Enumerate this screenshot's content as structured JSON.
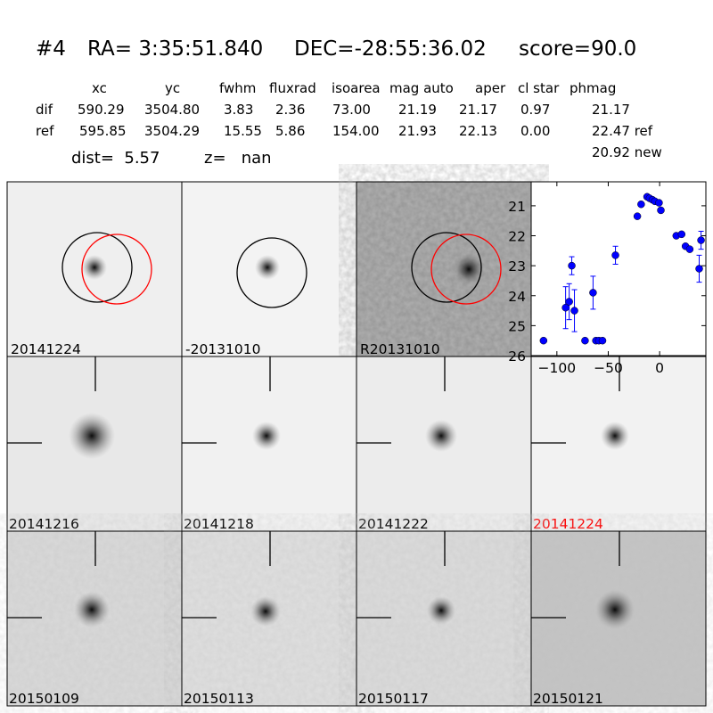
{
  "title": {
    "id": "#4",
    "ra": "RA= 3:35:51.840",
    "dec": "DEC=-28:55:36.02",
    "score": "score=90.0"
  },
  "table": {
    "headers": [
      "xc",
      "yc",
      "fwhm",
      "fluxrad",
      "isoarea",
      "mag auto",
      "aper",
      "cl star",
      "phmag"
    ],
    "rows": [
      {
        "label": "dif",
        "values": [
          "590.29",
          "3504.80",
          "3.83",
          "2.36",
          "73.00",
          "21.19",
          "21.17",
          "0.97",
          "21.17"
        ]
      },
      {
        "label": "ref",
        "values": [
          "595.85",
          "3504.29",
          "15.55",
          "5.86",
          "154.00",
          "21.93",
          "22.13",
          "0.00",
          "22.47 ref"
        ]
      }
    ],
    "extra": "20.92 new",
    "dist": "dist=  5.57",
    "z": "z=   nan"
  },
  "stamps": [
    {
      "label": "20141224",
      "color": "#000000"
    },
    {
      "label": "-20131010",
      "color": "#000000"
    },
    {
      "label": "R20131010",
      "color": "#000000"
    },
    {
      "label": "20141216",
      "color": "#000000"
    },
    {
      "label": "20141218",
      "color": "#000000"
    },
    {
      "label": "20141222",
      "color": "#000000"
    },
    {
      "label": "20141224",
      "color": "#ff0000"
    },
    {
      "label": "20150109",
      "color": "#000000"
    },
    {
      "label": "20150113",
      "color": "#000000"
    },
    {
      "label": "20150117",
      "color": "#000000"
    },
    {
      "label": "20150121",
      "color": "#000000"
    }
  ],
  "chart_data": {
    "type": "scatter",
    "xlim": [
      -125,
      45
    ],
    "ylim": [
      26,
      20.2
    ],
    "y_inverted": true,
    "xticks": [
      -100,
      -50,
      0
    ],
    "yticks": [
      21,
      22,
      23,
      24,
      25,
      26
    ],
    "marker_color": "#0000ff",
    "points": [
      {
        "x": -113,
        "y": 25.5,
        "err": 0
      },
      {
        "x": -91.5,
        "y": 24.4,
        "err": 0.7
      },
      {
        "x": -88,
        "y": 24.2,
        "err": 0.6
      },
      {
        "x": -85.5,
        "y": 23.0,
        "err": 0.3
      },
      {
        "x": -82.9,
        "y": 24.5,
        "err": 0.7
      },
      {
        "x": -72.6,
        "y": 25.5,
        "err": 0
      },
      {
        "x": -64.8,
        "y": 23.9,
        "err": 0.55
      },
      {
        "x": -62,
        "y": 25.5,
        "err": 0
      },
      {
        "x": -59.1,
        "y": 25.5,
        "err": 0
      },
      {
        "x": -55.6,
        "y": 25.5,
        "err": 0
      },
      {
        "x": -43,
        "y": 22.65,
        "err": 0.3
      },
      {
        "x": -21.7,
        "y": 21.35,
        "err": 0
      },
      {
        "x": -18,
        "y": 20.95,
        "err": 0
      },
      {
        "x": -12.2,
        "y": 20.7,
        "err": 0
      },
      {
        "x": -9.8,
        "y": 20.75,
        "err": 0
      },
      {
        "x": -7,
        "y": 20.8,
        "err": 0
      },
      {
        "x": -4.6,
        "y": 20.85,
        "err": 0
      },
      {
        "x": -0.6,
        "y": 20.9,
        "err": 0
      },
      {
        "x": 1.2,
        "y": 21.15,
        "err": 0
      },
      {
        "x": 16.2,
        "y": 22.0,
        "err": 0
      },
      {
        "x": 21.4,
        "y": 21.95,
        "err": 0
      },
      {
        "x": 25.2,
        "y": 22.35,
        "err": 0
      },
      {
        "x": 29.3,
        "y": 22.45,
        "err": 0.05
      },
      {
        "x": 38.5,
        "y": 23.1,
        "err": 0.45
      },
      {
        "x": 40.3,
        "y": 22.15,
        "err": 0.3
      }
    ]
  }
}
